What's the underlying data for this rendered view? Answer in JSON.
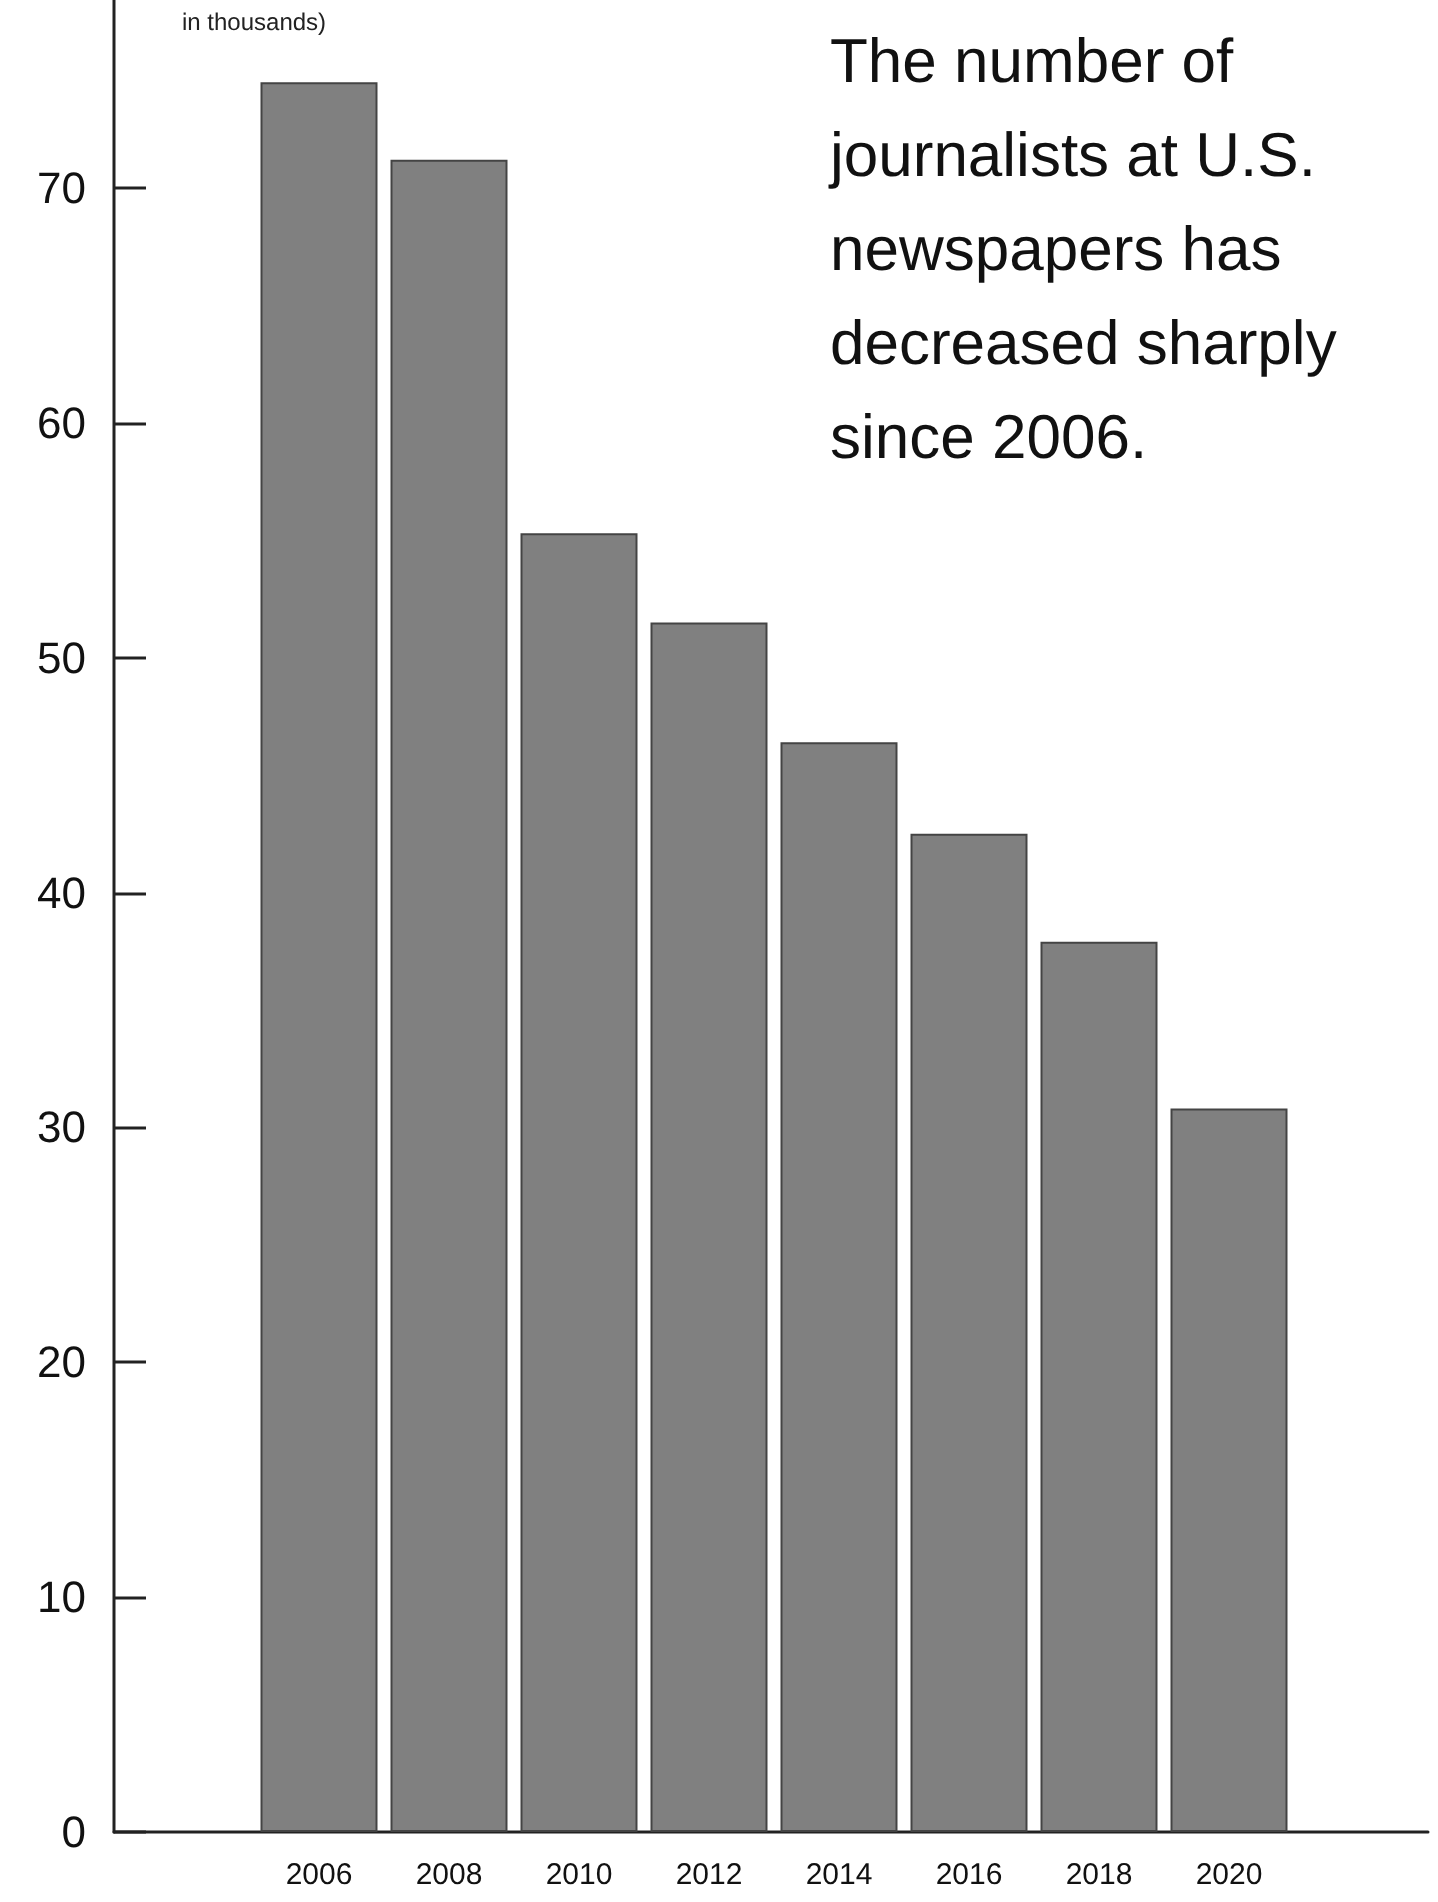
{
  "chart_data": {
    "type": "bar",
    "title": "The number of journalists at U.S. newspapers has decreased sharply since 2006.",
    "ylabel": "in thousands)",
    "categories": [
      "2006",
      "2008",
      "2010",
      "2012",
      "2014",
      "2016",
      "2018",
      "2020"
    ],
    "values": [
      74.5,
      71.2,
      55.3,
      51.5,
      46.4,
      42.5,
      37.9,
      30.8
    ],
    "color": "#808080",
    "ylim": [
      0,
      78
    ],
    "yticks": [
      0,
      10,
      20,
      30,
      40,
      50,
      60,
      70
    ],
    "grid": false,
    "legend": false
  }
}
